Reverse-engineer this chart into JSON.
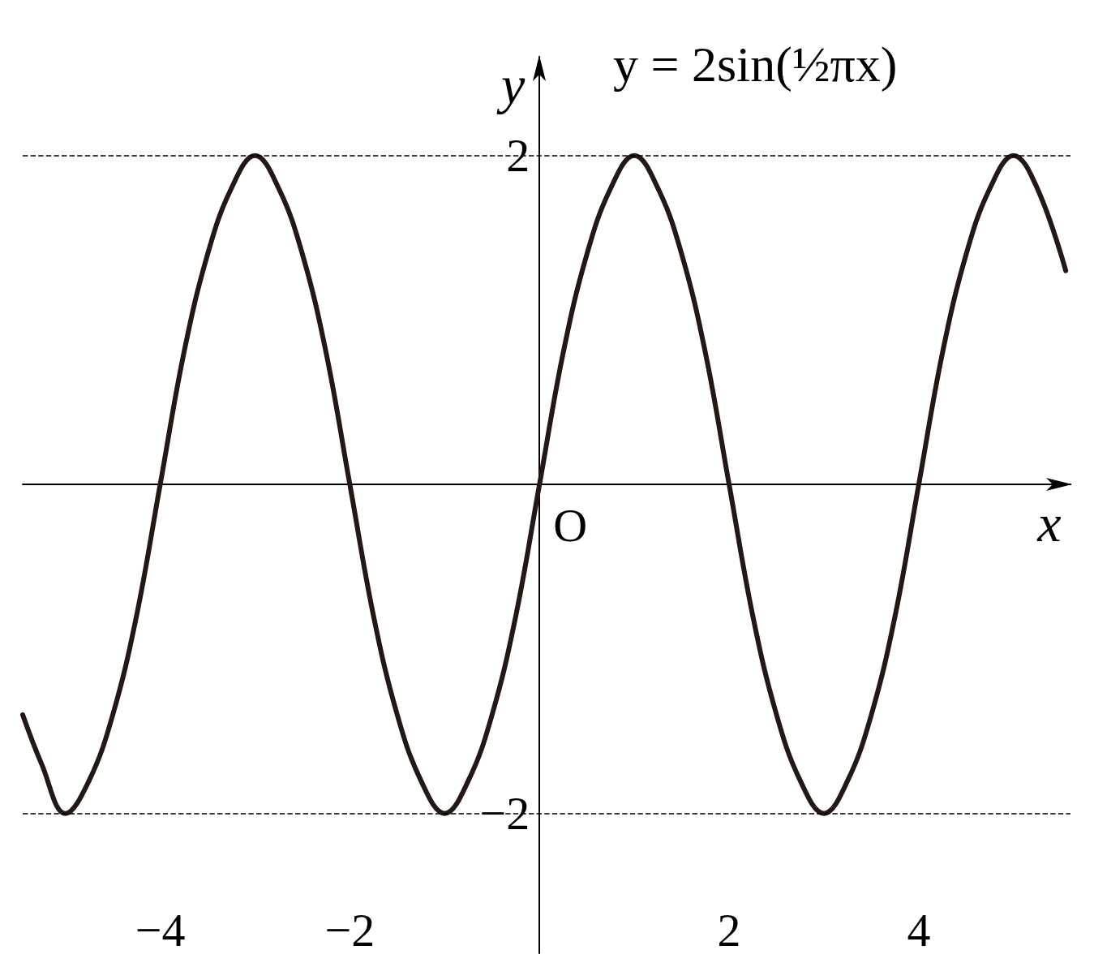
{
  "chart_data": {
    "type": "line",
    "xlabel": "x",
    "ylabel": "y",
    "annotations": [
      "y = 2sin(½πx)",
      {
        "text": "O",
        "x": 0,
        "y": 0
      }
    ],
    "x": [
      -5.45,
      -5.25,
      -5,
      -4.75,
      -4.5,
      -4.25,
      -4,
      -3.75,
      -3.5,
      -3.25,
      -3,
      -2.75,
      -2.5,
      -2.25,
      -2,
      -1.75,
      -1.5,
      -1.25,
      -1,
      -0.75,
      -0.5,
      -0.25,
      0,
      0.25,
      0.5,
      0.75,
      1,
      1.25,
      1.5,
      1.75,
      2,
      2.25,
      2.5,
      2.75,
      3,
      3.25,
      3.5,
      3.75,
      4,
      4.25,
      4.5,
      4.75,
      5,
      5.25,
      5.55
    ],
    "series": [
      {
        "color": "#231815",
        "values": [
          -1.4,
          -1.7,
          -2,
          -1.8,
          -1.4,
          -0.8,
          0,
          0.8,
          1.4,
          1.8,
          2,
          1.8,
          1.4,
          0.8,
          0,
          -0.8,
          -1.4,
          -1.8,
          -2,
          -1.8,
          -1.4,
          -0.8,
          0,
          0.8,
          1.4,
          1.8,
          2,
          1.8,
          1.4,
          0.8,
          0,
          -0.8,
          -1.4,
          -1.8,
          -2,
          -1.8,
          -1.4,
          -0.8,
          0,
          0.8,
          1.4,
          1.8,
          2,
          1.8,
          1.3
        ]
      }
    ],
    "xlim": [
      -5.45,
      5.6
    ],
    "ylim": [
      -2.85,
      2.6
    ],
    "xticks": [
      {
        "value": -4,
        "label": "−4"
      },
      {
        "value": -2,
        "label": "−2"
      },
      2,
      4
    ],
    "yticks": [
      2,
      {
        "value": -2,
        "label": "−2"
      }
    ],
    "ref_lines": [
      {
        "axis": "y",
        "value": 2,
        "color": "#000000",
        "line_style": "dashed"
      },
      {
        "axis": "y",
        "value": -2,
        "color": "#000000",
        "line_style": "dashed"
      }
    ],
    "grid": false
  }
}
